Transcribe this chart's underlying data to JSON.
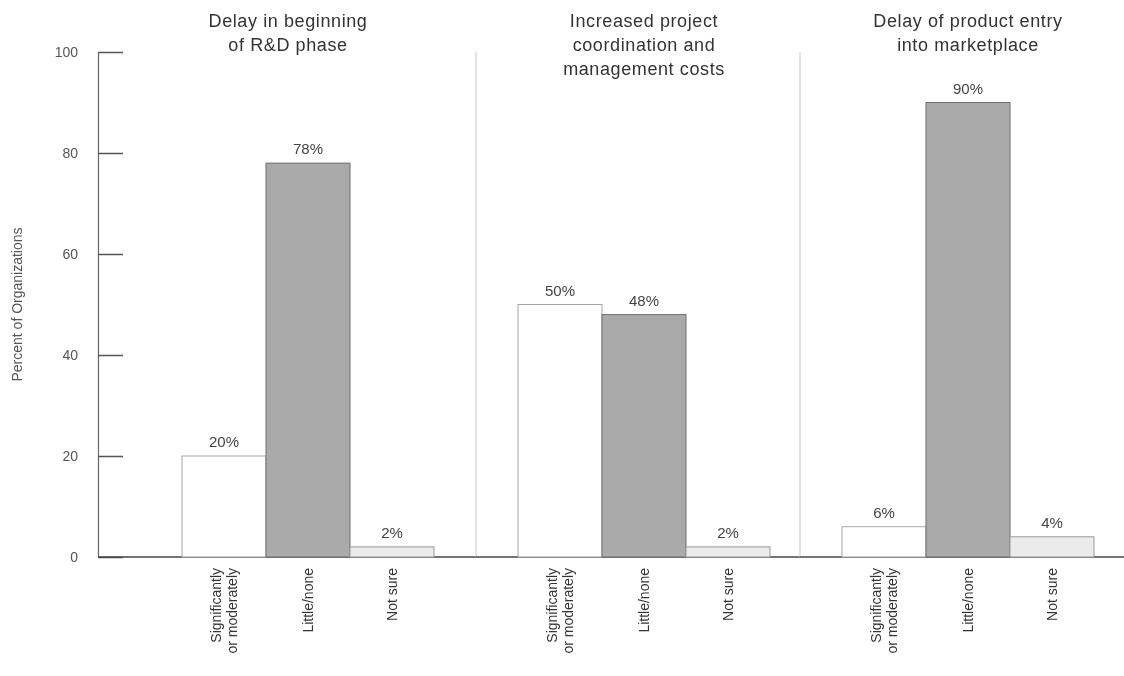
{
  "chart_data": [
    {
      "type": "bar",
      "title": "Delay in beginning\nof R&D phase",
      "ylabel": "Percent of Organizations",
      "categories": [
        "Significantly\nor moderately",
        "Little/none",
        "Not sure"
      ],
      "values": [
        20,
        78,
        2
      ],
      "value_labels": [
        "20%",
        "78%",
        "2%"
      ],
      "colors": [
        "#ffffff",
        "#aaaaaa",
        "#ebebeb"
      ],
      "ylim": [
        0,
        100
      ],
      "yticks": [
        0,
        20,
        40,
        60,
        80,
        100
      ]
    },
    {
      "type": "bar",
      "title": "Increased project\ncoordination and\nmanagement costs",
      "categories": [
        "Significantly\nor moderately",
        "Little/none",
        "Not sure"
      ],
      "values": [
        50,
        48,
        2
      ],
      "value_labels": [
        "50%",
        "48%",
        "2%"
      ],
      "colors": [
        "#ffffff",
        "#aaaaaa",
        "#ebebeb"
      ],
      "ylim": [
        0,
        100
      ],
      "tick_labels": "x"
    },
    {
      "type": "bar",
      "title": "Delay of product entry\ninto marketplace",
      "categories": [
        "Significantly\nor moderately",
        "Little/none",
        "Not sure"
      ],
      "values": [
        6,
        90,
        4
      ],
      "value_labels": [
        "6%",
        "90%",
        "4%"
      ],
      "colors": [
        "#ffffff",
        "#aaaaaa",
        "#ebebeb"
      ],
      "ylim": [
        0,
        100
      ],
      "tick_labels": "x"
    }
  ]
}
